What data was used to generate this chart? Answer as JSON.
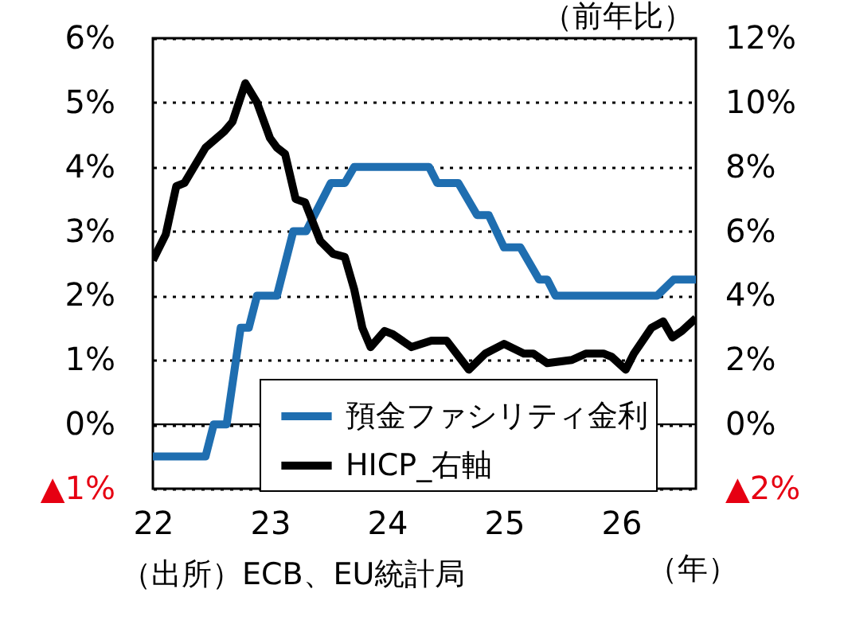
{
  "chart_data": {
    "type": "line",
    "y2label": "（前年比）",
    "xlabel": "（年）",
    "annotations": [
      "（出所）ECB、EU統計局"
    ],
    "xlim": [
      22,
      26.64
    ],
    "xticks": [
      22,
      23,
      24,
      25,
      26
    ],
    "ylim": [
      -1,
      6
    ],
    "yticks": [
      {
        "value": -1,
        "label": "▲1%"
      },
      {
        "value": 0,
        "label": "0%"
      },
      {
        "value": 1,
        "label": "1%"
      },
      {
        "value": 2,
        "label": "2%"
      },
      {
        "value": 3,
        "label": "3%"
      },
      {
        "value": 4,
        "label": "4%"
      },
      {
        "value": 5,
        "label": "5%"
      },
      {
        "value": 6,
        "label": "6%"
      }
    ],
    "y2lim": [
      -2,
      12
    ],
    "y2ticks": [
      {
        "value": -2,
        "label": "▲2%"
      },
      {
        "value": 0,
        "label": "0%"
      },
      {
        "value": 2,
        "label": "2%"
      },
      {
        "value": 4,
        "label": "4%"
      },
      {
        "value": 6,
        "label": "6%"
      },
      {
        "value": 8,
        "label": "8%"
      },
      {
        "value": 10,
        "label": "10%"
      },
      {
        "value": 12,
        "label": "12%"
      }
    ],
    "grid": "y",
    "legend": "bottom right",
    "marker": "none",
    "line_style": "solid",
    "ref_lines": [
      {
        "axis": "y",
        "value": 0,
        "color": "#000000"
      }
    ],
    "series": [
      {
        "name": "預金ファシリティ金利",
        "color": "#1f6eb0",
        "x": [
          22.0,
          22.45,
          22.52,
          22.63,
          22.75,
          22.82,
          22.89,
          22.96,
          23.06,
          23.2,
          23.31,
          23.52,
          23.64,
          23.72,
          24.36,
          24.43,
          24.61,
          24.77,
          24.87,
          25.0,
          25.14,
          25.3,
          25.37,
          25.44,
          26.31,
          26.45,
          26.64
        ],
        "values": [
          -0.5,
          -0.5,
          0,
          0,
          1.5,
          1.5,
          2.0,
          2.0,
          2.0,
          3.0,
          3.0,
          3.75,
          3.75,
          4.0,
          4.0,
          3.75,
          3.75,
          3.25,
          3.25,
          2.75,
          2.75,
          2.25,
          2.25,
          2.0,
          2.0,
          2.25,
          2.25
        ]
      },
      {
        "name": "HICP_右軸",
        "color": "#000000",
        "axis": "y2",
        "x": [
          22.0,
          22.11,
          22.2,
          22.27,
          22.45,
          22.61,
          22.68,
          22.79,
          22.89,
          23.0,
          23.06,
          23.13,
          23.22,
          23.3,
          23.43,
          23.54,
          23.64,
          23.72,
          23.79,
          23.86,
          23.98,
          24.05,
          24.21,
          24.38,
          24.51,
          24.7,
          24.84,
          25.0,
          25.17,
          25.25,
          25.37,
          25.58,
          25.7,
          25.85,
          25.92,
          26.04,
          26.11,
          26.26,
          26.36,
          26.44,
          26.52,
          26.64
        ],
        "values": [
          5.1,
          5.9,
          7.4,
          7.5,
          8.6,
          9.1,
          9.4,
          10.6,
          10.0,
          8.9,
          8.6,
          8.4,
          7.0,
          6.9,
          5.7,
          5.3,
          5.2,
          4.2,
          3.0,
          2.4,
          2.9,
          2.8,
          2.4,
          2.6,
          2.6,
          1.7,
          2.2,
          2.5,
          2.2,
          2.2,
          1.9,
          2.0,
          2.2,
          2.2,
          2.1,
          1.7,
          2.2,
          3.0,
          3.2,
          2.7,
          2.9,
          3.3
        ]
      }
    ]
  }
}
